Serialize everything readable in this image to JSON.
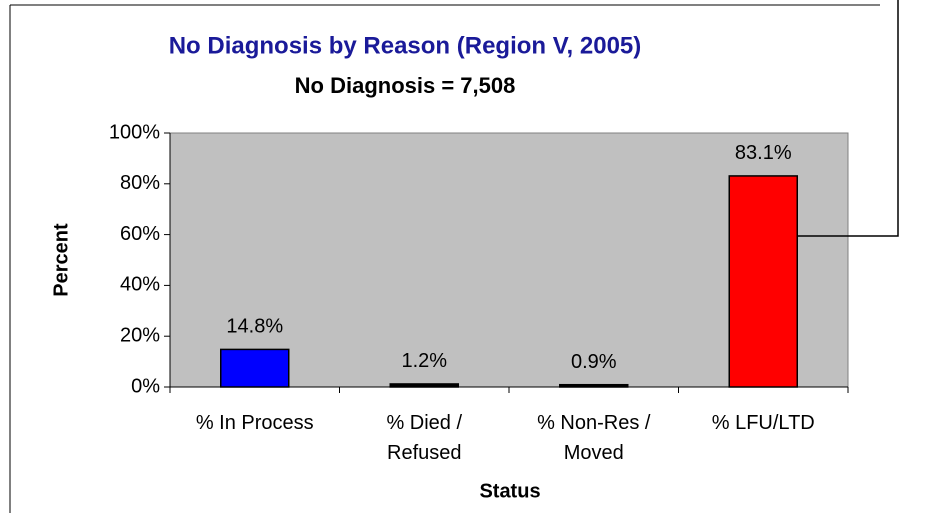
{
  "chart_data": {
    "type": "bar",
    "title": "No Diagnosis by Reason (Region V, 2005)",
    "subtitle": "No Diagnosis = 7,508",
    "x_label": "Status",
    "y_label": "Percent",
    "categories": [
      "% In Process",
      "% Died /\nRefused",
      "% Non-Res /\nMoved",
      "% LFU/LTD"
    ],
    "values": [
      14.8,
      1.2,
      0.9,
      83.1
    ],
    "value_labels": [
      "14.8%",
      "1.2%",
      "0.9%",
      "83.1%"
    ],
    "colors": [
      "#0000ff",
      "#000000",
      "#000000",
      "#ff0000"
    ],
    "ylim": [
      0,
      100
    ],
    "yticks": [
      {
        "value": 0,
        "label": "0%"
      },
      {
        "value": 20,
        "label": "20%"
      },
      {
        "value": 40,
        "label": "40%"
      },
      {
        "value": 60,
        "label": "60%"
      },
      {
        "value": 80,
        "label": "80%"
      },
      {
        "value": 100,
        "label": "100%"
      }
    ]
  }
}
